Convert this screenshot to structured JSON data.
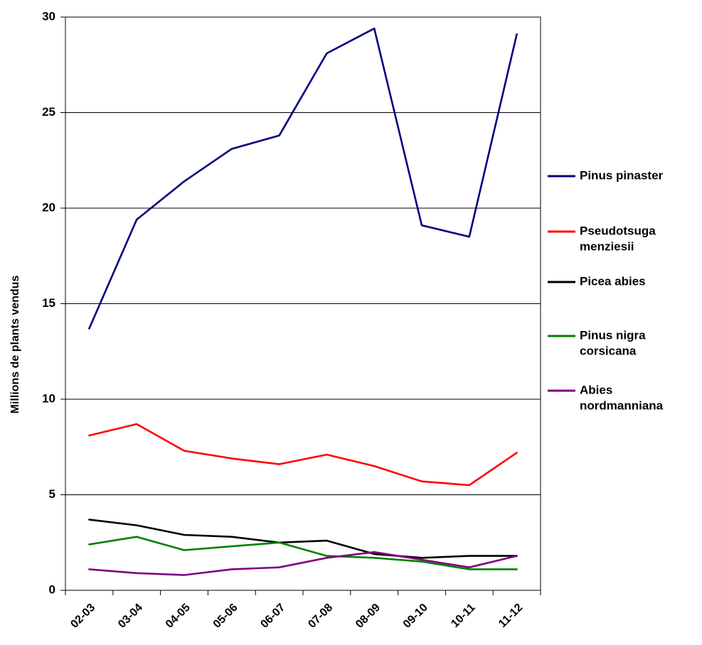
{
  "chart_data": {
    "type": "line",
    "title": "",
    "xlabel": "",
    "ylabel": "Millions de plants vendus",
    "ylim": [
      0,
      30
    ],
    "yticks": [
      0,
      5,
      10,
      15,
      20,
      25,
      30
    ],
    "grid": "horizontal",
    "legend_position": "right",
    "categories": [
      "02-03",
      "03-04",
      "04-05",
      "05-06",
      "06-07",
      "07-08",
      "08-09",
      "09-10",
      "10-11",
      "11-12"
    ],
    "series": [
      {
        "name": "Pinus pinaster",
        "legend_lines": [
          "Pinus pinaster"
        ],
        "color": "#000080",
        "values": [
          13.7,
          19.4,
          21.4,
          23.1,
          23.8,
          28.1,
          29.4,
          19.1,
          18.5,
          29.1
        ]
      },
      {
        "name": "Pseudotsuga menziesii",
        "legend_lines": [
          "Pseudotsuga",
          "menziesii"
        ],
        "color": "#ff0000",
        "values": [
          8.1,
          8.7,
          7.3,
          6.9,
          6.6,
          7.1,
          6.5,
          5.7,
          5.5,
          7.2
        ]
      },
      {
        "name": "Picea abies",
        "legend_lines": [
          "Picea abies"
        ],
        "color": "#000000",
        "values": [
          3.7,
          3.4,
          2.9,
          2.8,
          2.5,
          2.6,
          1.9,
          1.7,
          1.8,
          1.8
        ]
      },
      {
        "name": "Pinus nigra corsicana",
        "legend_lines": [
          "Pinus nigra",
          "corsicana"
        ],
        "color": "#008000",
        "values": [
          2.4,
          2.8,
          2.1,
          2.3,
          2.5,
          1.8,
          1.7,
          1.5,
          1.1,
          1.1
        ]
      },
      {
        "name": "Abies nordmanniana",
        "legend_lines": [
          "Abies",
          "nordmanniana"
        ],
        "color": "#800080",
        "values": [
          1.1,
          0.9,
          0.8,
          1.1,
          1.2,
          1.7,
          2.0,
          1.6,
          1.2,
          1.8
        ]
      }
    ]
  }
}
